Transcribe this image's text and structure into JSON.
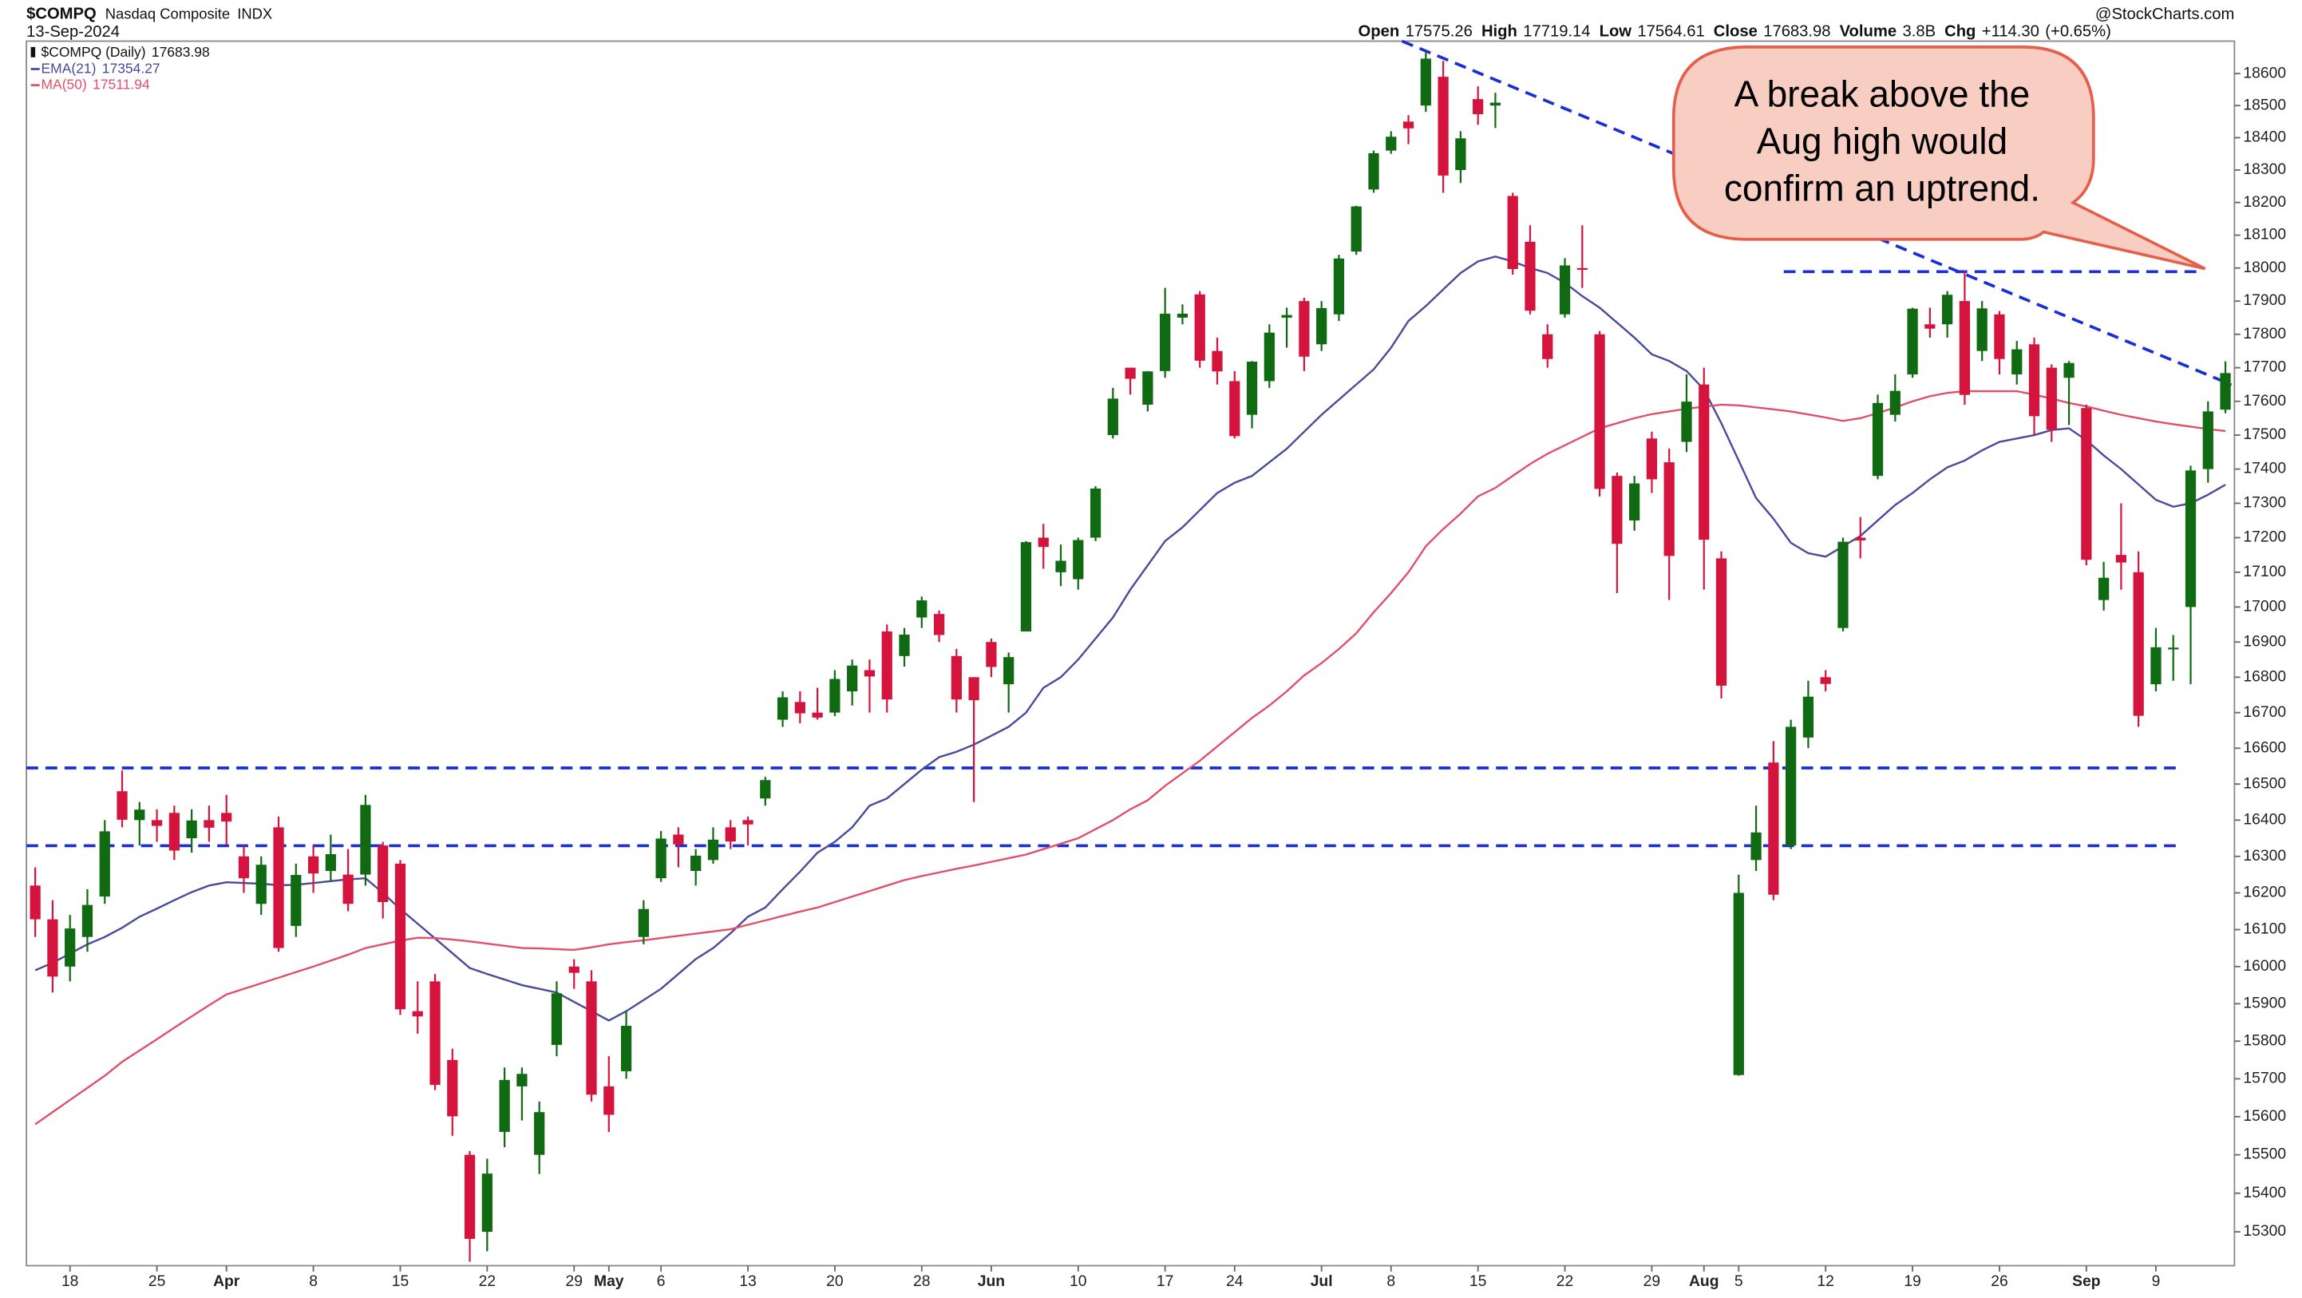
{
  "chart_data": {
    "type": "candlestick",
    "title": "$COMPQ",
    "subtitle": "Nasdaq Composite",
    "exchange": "INDX",
    "date": "13-Sep-2024",
    "source": "@StockCharts.com",
    "main_name": "$COMPQ (Daily)",
    "header": {
      "labels": [
        "Open",
        "High",
        "Low",
        "Close",
        "Volume",
        "Chg"
      ],
      "volume": {
        "value": 3800000000,
        "label": "3.8B"
      },
      "change": {
        "value": 114.3,
        "label": "+114.30"
      },
      "change_pct": {
        "value": 0.65,
        "label": "(+0.65%)"
      }
    },
    "callout": [
      "A break above the",
      "Aug high would",
      "confirm an uptrend."
    ],
    "up_color": "#0f6a12",
    "down_color": "#d4143c",
    "log_scale": true,
    "ylim": [
      15213,
      18702
    ],
    "yticks": [
      18600,
      18500,
      18400,
      18300,
      18200,
      18100,
      18000,
      17900,
      17800,
      17700,
      17600,
      17500,
      17400,
      17300,
      17200,
      17100,
      17000,
      16900,
      16800,
      16700,
      16600,
      16500,
      16400,
      16300,
      16200,
      16100,
      16000,
      15900,
      15800,
      15700,
      15600,
      15500,
      15400,
      15300
    ],
    "categories": [
      null,
      null,
      "18",
      null,
      null,
      null,
      null,
      "25",
      null,
      null,
      null,
      "Apr",
      null,
      null,
      null,
      null,
      "8",
      null,
      null,
      null,
      null,
      "15",
      null,
      null,
      null,
      null,
      "22",
      null,
      null,
      null,
      null,
      "29",
      null,
      "May",
      null,
      null,
      "6",
      null,
      null,
      null,
      null,
      "13",
      null,
      null,
      null,
      null,
      "20",
      null,
      null,
      null,
      null,
      "28",
      null,
      null,
      null,
      "Jun",
      null,
      null,
      null,
      null,
      "10",
      null,
      null,
      null,
      null,
      "17",
      null,
      null,
      null,
      "24",
      null,
      null,
      null,
      null,
      "Jul",
      null,
      null,
      null,
      "8",
      null,
      null,
      null,
      null,
      "15",
      null,
      null,
      null,
      null,
      "22",
      null,
      null,
      null,
      null,
      "29",
      null,
      null,
      "Aug",
      null,
      "5",
      null,
      null,
      null,
      null,
      "12",
      null,
      null,
      null,
      null,
      "19",
      null,
      null,
      null,
      null,
      "26",
      null,
      null,
      null,
      null,
      "Sep",
      null,
      null,
      null,
      "9",
      null,
      null,
      null,
      null
    ],
    "open": [
      16220,
      16128,
      16000,
      16080,
      16190,
      16480,
      16400,
      16400,
      16420,
      16350,
      16400,
      16420,
      16300,
      16170,
      16380,
      16110,
      16300,
      16260,
      16250,
      16250,
      16330,
      16280,
      15880,
      15960,
      15750,
      15500,
      15300,
      15560,
      15680,
      15500,
      15790,
      16000,
      15960,
      15680,
      15720,
      16080,
      16240,
      16360,
      16260,
      16290,
      16380,
      16400,
      16460,
      16680,
      16730,
      16700,
      16700,
      16760,
      16820,
      16930,
      16860,
      16970,
      16980,
      16860,
      16800,
      16900,
      16780,
      16930,
      17200,
      17100,
      17080,
      17200,
      17500,
      17700,
      17590,
      17690,
      17850,
      17920,
      17750,
      17660,
      17560,
      17660,
      17850,
      17900,
      17770,
      17860,
      18050,
      18240,
      18360,
      18450,
      18500,
      18590,
      18300,
      18520,
      18500,
      18220,
      18080,
      17800,
      17860,
      18000,
      17800,
      17380,
      17250,
      17490,
      17420,
      17480,
      17650,
      17140,
      15710,
      16290,
      16560,
      16330,
      16630,
      16800,
      16940,
      17200,
      17380,
      17560,
      17680,
      17830,
      17830,
      17900,
      17750,
      17860,
      17680,
      17770,
      17700,
      17670,
      17580,
      17020,
      17150,
      17100,
      16780,
      16880,
      17000,
      17400,
      17575.26
    ],
    "high": [
      16270,
      16180,
      16140,
      16210,
      16400,
      16538,
      16450,
      16430,
      16440,
      16430,
      16440,
      16470,
      16330,
      16300,
      16410,
      16280,
      16330,
      16360,
      16320,
      16470,
      16340,
      16290,
      15960,
      15980,
      15780,
      15510,
      15490,
      15730,
      15730,
      15640,
      15960,
      16020,
      15990,
      15760,
      15880,
      16180,
      16370,
      16380,
      16320,
      16380,
      16400,
      16410,
      16520,
      16760,
      16760,
      16770,
      16820,
      16850,
      16850,
      16950,
      16940,
      17030,
      16990,
      16880,
      16800,
      16910,
      16870,
      17190,
      17240,
      17180,
      17200,
      17350,
      17640,
      17700,
      17690,
      17940,
      17890,
      17930,
      17790,
      17690,
      17720,
      17830,
      17880,
      17910,
      17900,
      18040,
      18190,
      18360,
      18420,
      18470,
      18671,
      18640,
      18420,
      18560,
      18540,
      18230,
      18130,
      17830,
      18030,
      18130,
      17810,
      17390,
      17380,
      17510,
      17460,
      17680,
      17700,
      17160,
      16250,
      16440,
      16620,
      16680,
      16790,
      16820,
      17200,
      17260,
      17620,
      17680,
      17880,
      17880,
      17930,
      17990,
      17900,
      17870,
      17780,
      17790,
      17710,
      17720,
      17590,
      17130,
      17300,
      17160,
      16940,
      16920,
      17410,
      17600,
      17719.14
    ],
    "low": [
      16080,
      15930,
      15960,
      16040,
      16170,
      16380,
      16330,
      16340,
      16290,
      16310,
      16340,
      16330,
      16200,
      16140,
      16040,
      16080,
      16200,
      16230,
      16150,
      16220,
      16130,
      15870,
      15820,
      15670,
      15550,
      15223,
      15250,
      15520,
      15590,
      15450,
      15760,
      15940,
      15640,
      15560,
      15700,
      16060,
      16230,
      16270,
      16220,
      16280,
      16320,
      16330,
      16440,
      16660,
      16670,
      16680,
      16690,
      16720,
      16700,
      16700,
      16830,
      16940,
      16900,
      16700,
      16450,
      16800,
      16700,
      16930,
      17110,
      17060,
      17050,
      17190,
      17490,
      17620,
      17570,
      17670,
      17830,
      17700,
      17650,
      17490,
      17520,
      17640,
      17760,
      17690,
      17750,
      17840,
      18040,
      18230,
      18350,
      18380,
      18480,
      18230,
      18260,
      18440,
      18430,
      17980,
      17860,
      17700,
      17850,
      17940,
      17320,
      17040,
      17220,
      17330,
      17020,
      17450,
      17050,
      16740,
      15708,
      16260,
      16180,
      16320,
      16600,
      16760,
      16930,
      17140,
      17370,
      17540,
      17670,
      17790,
      17790,
      17590,
      17720,
      17680,
      17650,
      17500,
      17480,
      17530,
      17120,
      16990,
      17050,
      16660,
      16760,
      16790,
      16780,
      17360,
      17564.61
    ],
    "close": [
      16128,
      15973,
      16103,
      16167,
      16369,
      16401,
      16429,
      16384,
      16316,
      16399,
      16379,
      16396,
      16240,
      16277,
      16050,
      16249,
      16253,
      16306,
      16170,
      16442,
      16175,
      15885,
      15866,
      15684,
      15601,
      15282,
      15451,
      15697,
      15713,
      15612,
      15928,
      15983,
      15658,
      15605,
      15841,
      16156,
      16349,
      16333,
      16302,
      16346,
      16341,
      16388,
      16511,
      16743,
      16698,
      16686,
      16795,
      16833,
      16802,
      16737,
      16921,
      17019,
      16920,
      16737,
      16735,
      16829,
      16857,
      17187,
      17173,
      17133,
      17193,
      17343,
      17608,
      17667,
      17689,
      17862,
      17862,
      17721,
      17689,
      17497,
      17718,
      17805,
      17858,
      17733,
      17879,
      18029,
      18188,
      18352,
      18403,
      18429,
      18647,
      18283,
      18398,
      18473,
      18509,
      17997,
      17871,
      17726,
      18008,
      17997,
      17342,
      17182,
      17358,
      17370,
      17147,
      17599,
      17194,
      16776,
      16200,
      16366,
      16195,
      16660,
      16745,
      16781,
      17188,
      17192,
      17595,
      17631,
      17877,
      17817,
      17919,
      17619,
      17878,
      17726,
      17755,
      17556,
      17516,
      17714,
      17136,
      17084,
      17128,
      16691,
      16885,
      16884,
      17396,
      17570,
      17683.98
    ],
    "series": [
      {
        "name": "EMA(21)",
        "color": "#4a4a9c",
        "values": [
          15990,
          16010,
          16035,
          16060,
          16080,
          16105,
          16135,
          16157,
          16180,
          16202,
          16220,
          16229,
          16227,
          16225,
          16221,
          16222,
          16227,
          16232,
          16237,
          16240,
          16200,
          16156,
          16116,
          16076,
          16036,
          15996,
          15980,
          15965,
          15950,
          15940,
          15930,
          15905,
          15880,
          15855,
          15880,
          15910,
          15940,
          15980,
          16020,
          16050,
          16090,
          16135,
          16160,
          16210,
          16258,
          16310,
          16340,
          16380,
          16440,
          16460,
          16500,
          16540,
          16575,
          16590,
          16610,
          16635,
          16660,
          16700,
          16770,
          16800,
          16850,
          16910,
          16970,
          17050,
          17120,
          17190,
          17230,
          17280,
          17330,
          17360,
          17380,
          17420,
          17460,
          17510,
          17560,
          17605,
          17650,
          17695,
          17760,
          17840,
          17885,
          17935,
          17985,
          18020,
          18035,
          18020,
          18000,
          17985,
          17955,
          17915,
          17880,
          17835,
          17790,
          17740,
          17720,
          17690,
          17635,
          17535,
          17425,
          17315,
          17255,
          17185,
          17155,
          17145,
          17175,
          17205,
          17250,
          17295,
          17330,
          17370,
          17405,
          17425,
          17455,
          17480,
          17490,
          17500,
          17515,
          17520,
          17485,
          17440,
          17400,
          17355,
          17310,
          17290,
          17300,
          17325,
          17354.27
        ]
      },
      {
        "name": "MA(50)",
        "color": "#e0506a",
        "values": [
          15580,
          15612,
          15644,
          15676,
          15708,
          15745,
          15775,
          15805,
          15836,
          15866,
          15896,
          15925,
          15940,
          15955,
          15970,
          15985,
          16000,
          16016,
          16032,
          16050,
          16060,
          16070,
          16078,
          16077,
          16073,
          16068,
          16062,
          16056,
          16050,
          16049,
          16047,
          16045,
          16052,
          16060,
          16066,
          16071,
          16077,
          16083,
          16089,
          16095,
          16101,
          16113,
          16125,
          16137,
          16149,
          16160,
          16175,
          16190,
          16205,
          16220,
          16235,
          16246,
          16256,
          16266,
          16275,
          16285,
          16295,
          16305,
          16320,
          16335,
          16350,
          16375,
          16400,
          16430,
          16455,
          16495,
          16530,
          16565,
          16605,
          16645,
          16685,
          16720,
          16760,
          16805,
          16840,
          16880,
          16925,
          16985,
          17040,
          17100,
          17175,
          17225,
          17270,
          17320,
          17345,
          17380,
          17415,
          17445,
          17470,
          17495,
          17520,
          17535,
          17550,
          17562,
          17570,
          17578,
          17584,
          17590,
          17588,
          17582,
          17576,
          17570,
          17561,
          17552,
          17542,
          17550,
          17565,
          17582,
          17600,
          17615,
          17625,
          17630,
          17630,
          17630,
          17630,
          17620,
          17608,
          17595,
          17585,
          17572,
          17560,
          17550,
          17540,
          17532,
          17525,
          17518,
          17511.94
        ]
      }
    ]
  }
}
